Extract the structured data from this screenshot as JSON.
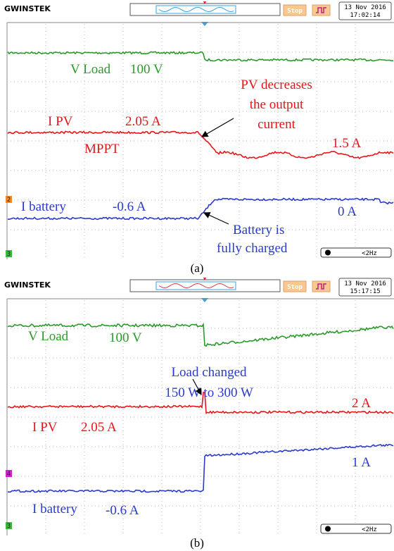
{
  "panels": [
    {
      "logo": "GWINSTEK",
      "stop": "Stop",
      "date": "13 Nov 2016",
      "time": "17:02:14",
      "freq": "<2Hz",
      "channel_markers": [
        "2",
        "3"
      ],
      "annotations": [
        "V Load",
        "100 V",
        "PV decreases",
        "the output",
        "current",
        "I PV",
        "2.05 A",
        "MPPT",
        "1.5 A",
        "I battery",
        "-0.6 A",
        "0 A",
        "Battery is",
        "fully charged"
      ],
      "caption": "(a)"
    },
    {
      "logo": "GWINSTEK",
      "stop": "Stop",
      "date": "13 Nov 2016",
      "time": "15:17:15",
      "freq": "<2Hz",
      "channel_markers": [
        "4",
        "3"
      ],
      "annotations": [
        "V Load",
        "100 V",
        "Load changed",
        "150 W to 300 W",
        "2 A",
        "I PV",
        "2.05 A",
        "1 A",
        "I battery",
        "-0.6 A"
      ],
      "caption": "(b)"
    }
  ]
}
